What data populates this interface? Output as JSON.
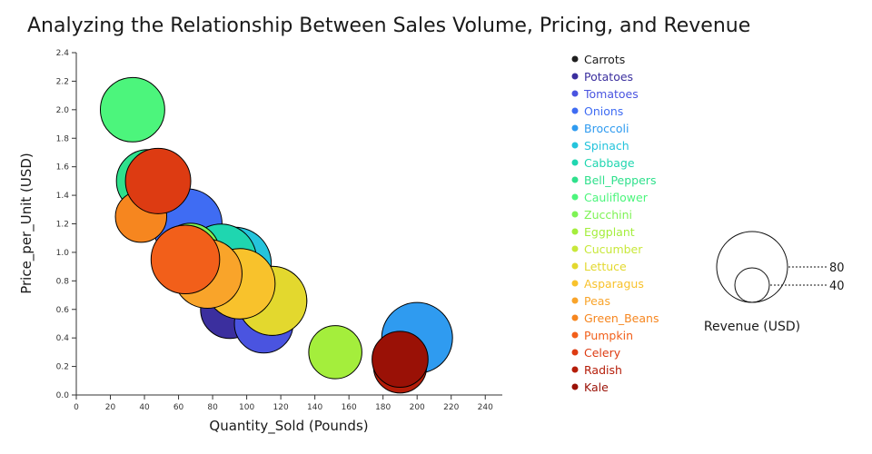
{
  "chart_data": {
    "type": "scatter",
    "title": "Analyzing the Relationship Between Sales Volume, Pricing, and Revenue",
    "xlabel": "Quantity_Sold (Pounds)",
    "ylabel": "Price_per_Unit (USD)",
    "xlim": [
      0,
      250
    ],
    "ylim": [
      0,
      2.4
    ],
    "x_ticks": [
      0,
      20,
      40,
      60,
      80,
      100,
      120,
      140,
      160,
      180,
      200,
      220,
      240
    ],
    "y_ticks": [
      0.0,
      0.2,
      0.4,
      0.6,
      0.8,
      1.0,
      1.2,
      1.4,
      1.6,
      1.8,
      2.0,
      2.2,
      2.4
    ],
    "grid": false,
    "legend_position": "right",
    "size_legend": {
      "title": "Revenue (USD)",
      "values": [
        80,
        40
      ]
    },
    "series": [
      {
        "name": "Carrots",
        "color": "#1f1f1f",
        "x": 95,
        "y": 0.8,
        "size": 76
      },
      {
        "name": "Potatoes",
        "color": "#3b2f9e",
        "x": 90,
        "y": 0.6,
        "size": 54
      },
      {
        "name": "Tomatoes",
        "color": "#4a54e0",
        "x": 110,
        "y": 0.5,
        "size": 55
      },
      {
        "name": "Onions",
        "color": "#3f6cf3",
        "x": 65,
        "y": 1.2,
        "size": 78
      },
      {
        "name": "Broccoli",
        "color": "#2f9bf0",
        "x": 200,
        "y": 0.4,
        "size": 80
      },
      {
        "name": "Spinach",
        "color": "#25c4dc",
        "x": 93,
        "y": 0.92,
        "size": 85
      },
      {
        "name": "Cabbage",
        "color": "#1fd6b0",
        "x": 85,
        "y": 0.95,
        "size": 80
      },
      {
        "name": "Bell_Peppers",
        "color": "#2fe08c",
        "x": 42,
        "y": 1.5,
        "size": 63
      },
      {
        "name": "Cauliflower",
        "color": "#4cf57c",
        "x": 33,
        "y": 2.0,
        "size": 66
      },
      {
        "name": "Zucchini",
        "color": "#7ef355",
        "x": 67,
        "y": 1.0,
        "size": 54
      },
      {
        "name": "Eggplant",
        "color": "#a4ee3c",
        "x": 152,
        "y": 0.3,
        "size": 45
      },
      {
        "name": "Cucumber",
        "color": "#c8e83a",
        "x": 115,
        "y": 0.66,
        "size": 76
      },
      {
        "name": "Lettuce",
        "color": "#e3d82e",
        "x": 115,
        "y": 0.66,
        "size": 76
      },
      {
        "name": "Asparagus",
        "color": "#f8c22c",
        "x": 96,
        "y": 0.78,
        "size": 79
      },
      {
        "name": "Peas",
        "color": "#f9a42a",
        "x": 77,
        "y": 0.85,
        "size": 76
      },
      {
        "name": "Green_Beans",
        "color": "#f6861f",
        "x": 38,
        "y": 1.25,
        "size": 42
      },
      {
        "name": "Pumpkin",
        "color": "#f25f1a",
        "x": 64,
        "y": 0.95,
        "size": 75
      },
      {
        "name": "Celery",
        "color": "#dd3b12",
        "x": 48,
        "y": 1.5,
        "size": 68
      },
      {
        "name": "Radish",
        "color": "#b51d09",
        "x": 190,
        "y": 0.2,
        "size": 45
      },
      {
        "name": "Kale",
        "color": "#9a1106",
        "x": 190,
        "y": 0.25,
        "size": 50
      }
    ]
  }
}
